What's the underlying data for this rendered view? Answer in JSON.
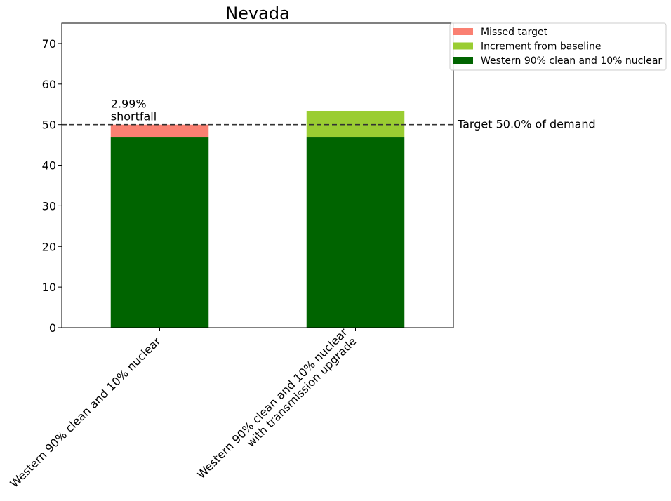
{
  "chart_data": {
    "type": "bar",
    "stacked": true,
    "title": "Nevada",
    "xlabel": "",
    "ylabel": "",
    "ylim": [
      0,
      75
    ],
    "yticks": [
      0,
      10,
      20,
      30,
      40,
      50,
      60,
      70
    ],
    "grid": false,
    "legend_position": "top-right, outside plot",
    "categories": [
      "Western 90% clean and 10% nuclear",
      "Western 90% clean and 10% nuclear\nwith transmission upgrade"
    ],
    "series": [
      {
        "name": "Western 90% clean and 10% nuclear",
        "color": "#006400",
        "values": [
          47.0,
          47.0
        ]
      },
      {
        "name": "Increment from baseline",
        "color": "#9acd32",
        "values": [
          0,
          6.4
        ]
      },
      {
        "name": "Missed target",
        "color": "#fa8072",
        "values": [
          2.99,
          0
        ]
      }
    ],
    "legend_order": [
      "Missed target",
      "Increment from baseline",
      "Western 90% clean and 10% nuclear"
    ],
    "target_line": {
      "value": 50.0,
      "label": "Target 50.0% of demand",
      "style": "dashed",
      "color": "#333333"
    },
    "annotations": [
      {
        "category_index": 0,
        "lines": [
          "2.99%",
          "shortfall"
        ]
      }
    ]
  }
}
